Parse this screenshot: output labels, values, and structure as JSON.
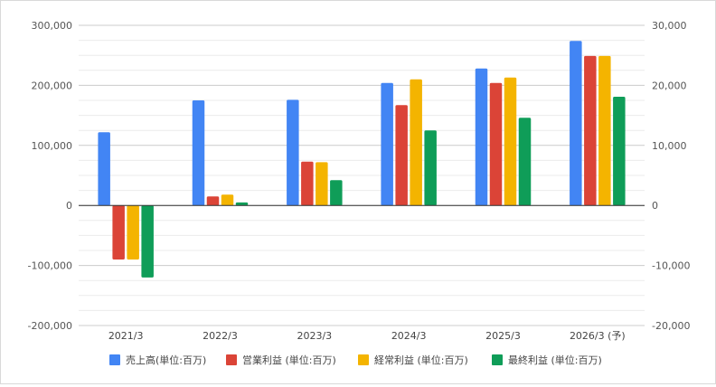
{
  "chart_data": {
    "type": "bar",
    "categories": [
      "2021/3",
      "2022/3",
      "2023/3",
      "2024/3",
      "2025/3",
      "2026/3 (予)"
    ],
    "series": [
      {
        "name": "売上高(単位:百万)",
        "axis": "left",
        "color": "#4285f4",
        "values": [
          122000,
          175000,
          176000,
          204000,
          228000,
          274000
        ]
      },
      {
        "name": "営業利益 (単位:百万)",
        "axis": "right",
        "color": "#db4437",
        "values": [
          -9000,
          1500,
          7300,
          16700,
          20400,
          24900
        ]
      },
      {
        "name": "経常利益 (単位:百万)",
        "axis": "right",
        "color": "#f4b400",
        "values": [
          -9000,
          1800,
          7200,
          21000,
          21300,
          24900
        ]
      },
      {
        "name": "最終利益 (単位:百万)",
        "axis": "right",
        "color": "#0f9d58",
        "values": [
          -12000,
          500,
          4200,
          12500,
          14600,
          18100
        ]
      }
    ],
    "left_axis": {
      "ylim": [
        -200000,
        300000
      ],
      "ticks": [
        "300,000",
        "200,000",
        "100,000",
        "0",
        "-100,000",
        "-200,000"
      ],
      "tick_values": [
        300000,
        200000,
        100000,
        0,
        -100000,
        -200000
      ]
    },
    "right_axis": {
      "ylim": [
        -20000,
        30000
      ],
      "ticks": [
        "30,000",
        "20,000",
        "10,000",
        "0",
        "-10,000",
        "-20,000"
      ],
      "tick_values": [
        30000,
        20000,
        10000,
        0,
        -10000,
        -20000
      ]
    },
    "grid": true,
    "legend_position": "bottom"
  }
}
